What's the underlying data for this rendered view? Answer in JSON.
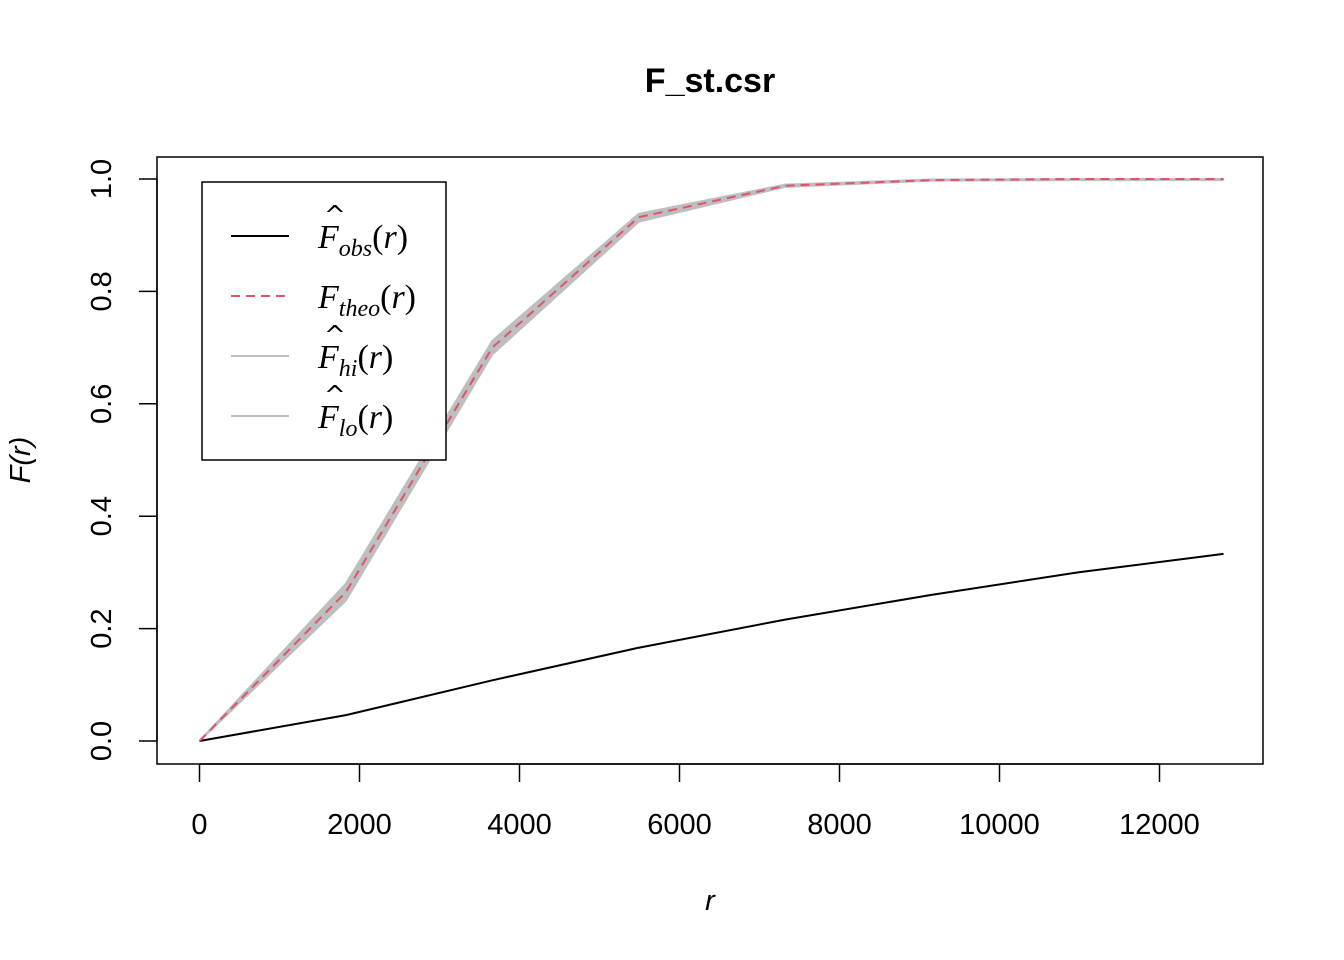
{
  "chart_data": {
    "type": "line",
    "title": "F_st.csr",
    "xlabel": "r",
    "ylabel": "F(r)",
    "xlim": [
      0,
      13000
    ],
    "ylim": [
      0,
      1.0
    ],
    "x_ticks": [
      0,
      2000,
      4000,
      6000,
      8000,
      10000,
      12000
    ],
    "x_tick_labels": [
      "0",
      "2000",
      "4000",
      "6000",
      "8000",
      "10000",
      "12000"
    ],
    "y_ticks": [
      0.0,
      0.2,
      0.4,
      0.6,
      0.8,
      1.0
    ],
    "y_tick_labels": [
      "0.0",
      "0.2",
      "0.4",
      "0.6",
      "0.8",
      "1.0"
    ],
    "grid": false,
    "legend_position": "top-left",
    "envelope_color": "#bebebe",
    "x": [
      0,
      1830,
      3660,
      5490,
      7320,
      9150,
      10980,
      12800
    ],
    "series": [
      {
        "key": "obs",
        "base": "F",
        "hat": true,
        "sub": "obs",
        "color": "#000000",
        "dash": "solid",
        "values": [
          0.0,
          0.046,
          0.108,
          0.166,
          0.216,
          0.26,
          0.3,
          0.333
        ]
      },
      {
        "key": "theo",
        "base": "F",
        "hat": false,
        "sub": "theo",
        "color": "#df536b",
        "dash": "dashed",
        "values": [
          0.0,
          0.265,
          0.7,
          0.932,
          0.988,
          0.998,
          1.0,
          1.0
        ]
      },
      {
        "key": "hi",
        "base": "F",
        "hat": true,
        "sub": "hi",
        "color": "#bebebe",
        "dash": "solid",
        "values": [
          0.0,
          0.28,
          0.712,
          0.938,
          0.99,
          0.999,
          1.0,
          1.0
        ]
      },
      {
        "key": "lo",
        "base": "F",
        "hat": true,
        "sub": "lo",
        "color": "#bebebe",
        "dash": "solid",
        "values": [
          0.0,
          0.25,
          0.688,
          0.924,
          0.986,
          0.997,
          0.998,
          0.998
        ]
      }
    ]
  }
}
